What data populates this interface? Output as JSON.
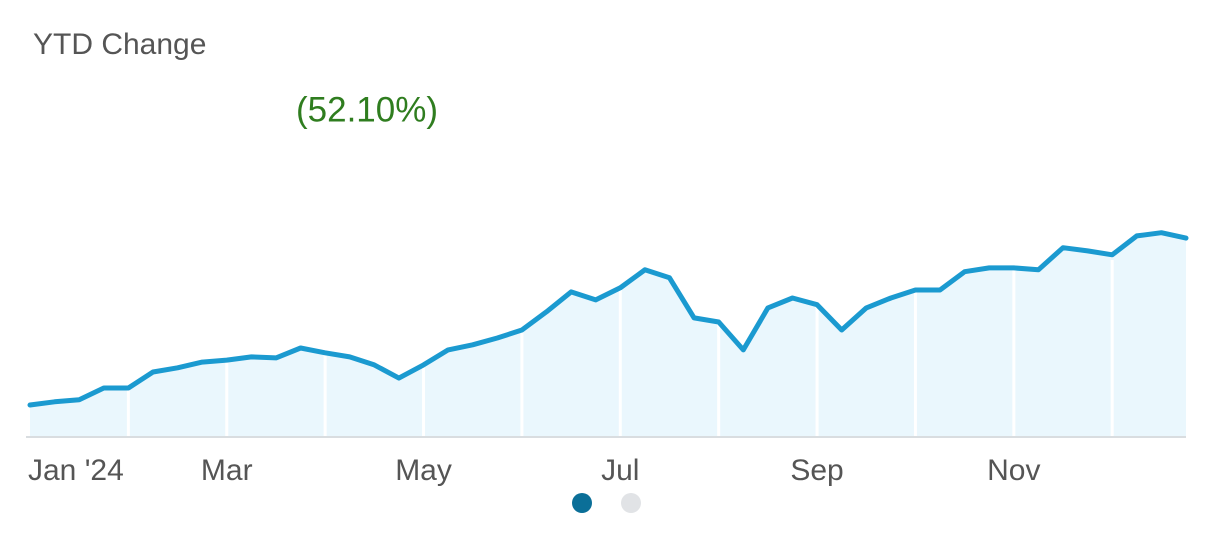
{
  "chart_data": {
    "type": "line",
    "title": "YTD Change",
    "subtitle": "(52.10%)",
    "categories": [
      "Jan '24",
      null,
      null,
      null,
      null,
      null,
      null,
      null,
      "Mar",
      null,
      null,
      null,
      null,
      null,
      null,
      null,
      "May",
      null,
      null,
      null,
      null,
      null,
      null,
      null,
      "Jul",
      null,
      null,
      null,
      null,
      null,
      null,
      null,
      "Sep",
      null,
      null,
      null,
      null,
      null,
      null,
      null,
      "Nov",
      null,
      null,
      null,
      null,
      null,
      null,
      null
    ],
    "values": [
      0,
      1,
      1.6,
      5.3,
      5.3,
      10.3,
      11.6,
      13.4,
      14,
      15,
      14.7,
      17.8,
      16.3,
      15,
      12.5,
      8.4,
      12.5,
      17.2,
      18.8,
      20.9,
      23.4,
      29.1,
      35.3,
      32.8,
      36.6,
      42.2,
      39.7,
      27.2,
      25.9,
      17.2,
      30.3,
      33.4,
      31.3,
      23.4,
      30.3,
      33.4,
      35.9,
      35.9,
      41.6,
      42.8,
      42.8,
      42.2,
      49.1,
      48.1,
      46.9,
      52.8,
      53.8,
      52.1
    ],
    "color": "#1b9ad0",
    "fill_color": "#eaf7fd",
    "ylim": [
      -10,
      64
    ]
  }
}
